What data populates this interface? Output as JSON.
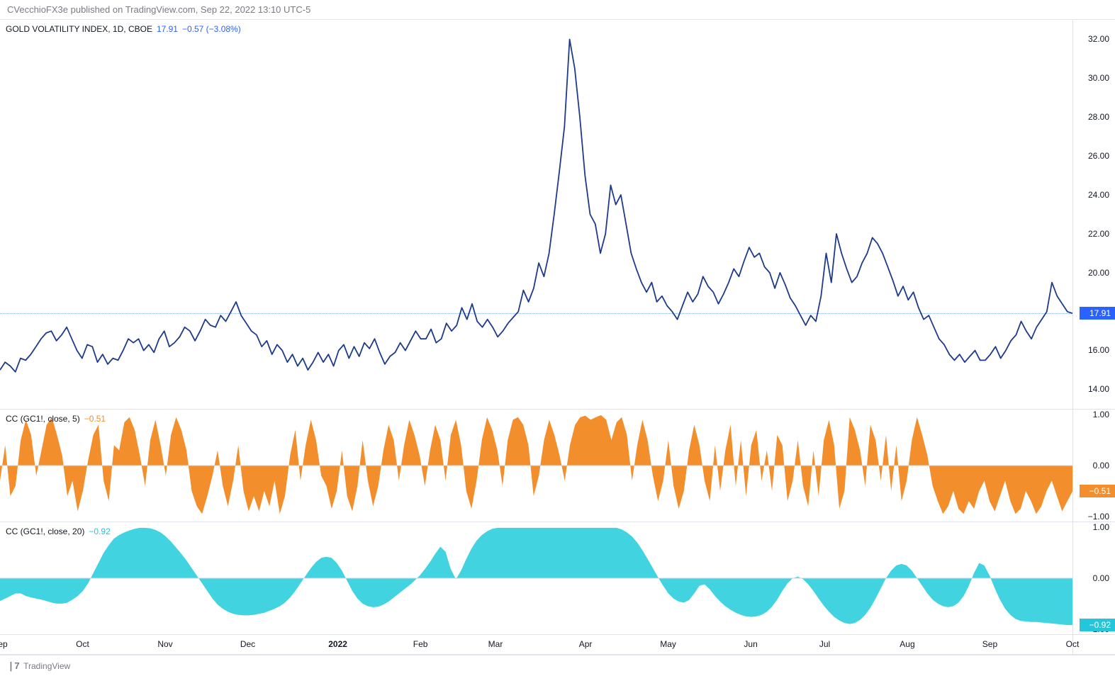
{
  "header": {
    "text": "CVecchioFX3e published on TradingView.com, Sep 22, 2022 13:10 UTC-5"
  },
  "footer": {
    "logo_prefix": "❘7",
    "logo_text": "TradingView"
  },
  "x_axis": {
    "labels": [
      "Sep",
      "Oct",
      "Nov",
      "Dec",
      "2022",
      "Feb",
      "Mar",
      "Apr",
      "May",
      "Jun",
      "Jul",
      "Aug",
      "Sep",
      "Oct"
    ],
    "positions": [
      0.0,
      0.077,
      0.154,
      0.231,
      0.315,
      0.392,
      0.462,
      0.546,
      0.623,
      0.7,
      0.769,
      0.846,
      0.923,
      1.0
    ],
    "bold_index": 4
  },
  "main": {
    "label_symbol": "GOLD VOLATILITY INDEX, 1D, CBOE",
    "label_value": "17.91",
    "label_change": "−0.57 (−3.08%)",
    "label_color": "#131722",
    "value_color": "#2962ff",
    "line_color": "#1e3a8a",
    "line_width": 1.8,
    "current_price": 17.91,
    "current_price_color": "#2962ff",
    "ylim": [
      13.0,
      33.0
    ],
    "yticks": [
      14,
      16,
      18,
      20,
      22,
      24,
      26,
      28,
      30,
      32
    ],
    "ytick_labels": [
      "14.00",
      "16.00",
      "18.00",
      "20.00",
      "22.00",
      "24.00",
      "26.00",
      "28.00",
      "30.00",
      "32.00"
    ],
    "dotted_line_y": 17.91,
    "background": "#ffffff",
    "series": [
      15.0,
      15.4,
      15.2,
      14.9,
      15.6,
      15.5,
      15.8,
      16.2,
      16.6,
      16.9,
      17.0,
      16.5,
      16.8,
      17.2,
      16.6,
      16.0,
      15.6,
      16.3,
      16.2,
      15.4,
      15.8,
      15.3,
      15.6,
      15.5,
      16.0,
      16.6,
      16.4,
      16.6,
      16.0,
      16.3,
      15.9,
      16.6,
      17.0,
      16.2,
      16.4,
      16.7,
      17.2,
      17.0,
      16.5,
      17.0,
      17.6,
      17.3,
      17.2,
      17.8,
      17.5,
      18.0,
      18.5,
      17.8,
      17.4,
      17.0,
      16.8,
      16.2,
      16.5,
      15.8,
      16.3,
      16.0,
      15.4,
      15.8,
      15.2,
      15.6,
      15.0,
      15.4,
      15.9,
      15.4,
      15.8,
      15.2,
      16.0,
      16.3,
      15.6,
      16.2,
      15.7,
      16.4,
      16.1,
      16.6,
      15.9,
      15.3,
      15.7,
      15.9,
      16.4,
      16.0,
      16.5,
      17.0,
      16.6,
      16.6,
      17.1,
      16.4,
      16.6,
      17.4,
      17.0,
      17.3,
      18.2,
      17.6,
      18.4,
      17.5,
      17.2,
      17.6,
      17.2,
      16.7,
      17.0,
      17.4,
      17.7,
      18.0,
      19.1,
      18.5,
      19.2,
      20.5,
      19.8,
      21.0,
      23.0,
      25.2,
      27.5,
      32.0,
      30.5,
      28.0,
      25.0,
      23.0,
      22.5,
      21.0,
      22.0,
      24.5,
      23.5,
      24.0,
      22.5,
      21.0,
      20.2,
      19.5,
      19.0,
      19.5,
      18.5,
      18.8,
      18.3,
      18.0,
      17.6,
      18.3,
      19.0,
      18.5,
      18.9,
      19.8,
      19.3,
      19.0,
      18.4,
      18.9,
      19.5,
      20.2,
      19.8,
      20.6,
      21.3,
      20.8,
      21.0,
      20.3,
      20.0,
      19.2,
      20.0,
      19.4,
      18.7,
      18.3,
      17.8,
      17.3,
      17.8,
      17.5,
      18.8,
      21.0,
      19.5,
      22.0,
      21.0,
      20.2,
      19.5,
      19.8,
      20.5,
      21.0,
      21.8,
      21.5,
      21.0,
      20.3,
      19.6,
      18.8,
      19.3,
      18.6,
      19.0,
      18.2,
      17.6,
      17.8,
      17.2,
      16.6,
      16.3,
      15.8,
      15.5,
      15.8,
      15.4,
      15.7,
      16.0,
      15.5,
      15.5,
      15.8,
      16.2,
      15.6,
      16.0,
      16.5,
      16.8,
      17.5,
      17.0,
      16.6,
      17.2,
      17.6,
      18.0,
      19.5,
      18.8,
      18.4,
      18.0,
      17.91
    ]
  },
  "cc5": {
    "label": "CC (GC1!, close, 5)",
    "value": "−0.51",
    "value_color": "#f28e2b",
    "fill_color": "#f28e2b",
    "current": -0.51,
    "current_color": "#f28e2b",
    "ylim": [
      -1.1,
      1.1
    ],
    "yticks": [
      -1,
      0,
      1
    ],
    "ytick_labels": [
      "−1.00",
      "0.00",
      "1.00"
    ],
    "series": [
      -0.3,
      0.4,
      -0.6,
      -0.4,
      0.5,
      0.9,
      0.6,
      -0.2,
      0.3,
      0.8,
      0.95,
      0.6,
      0.2,
      -0.6,
      -0.3,
      -0.9,
      -0.5,
      0.1,
      0.6,
      0.8,
      -0.3,
      -0.7,
      0.4,
      0.3,
      0.85,
      0.95,
      0.7,
      0.2,
      -0.4,
      0.5,
      0.9,
      0.4,
      -0.2,
      0.6,
      0.95,
      0.7,
      0.3,
      -0.5,
      -0.8,
      -0.95,
      -0.6,
      -0.2,
      0.3,
      -0.4,
      -0.8,
      -0.3,
      0.4,
      -0.5,
      -0.9,
      -0.6,
      -0.9,
      -0.5,
      -0.8,
      -0.3,
      -0.95,
      -0.6,
      0.2,
      0.7,
      -0.3,
      0.4,
      0.9,
      0.5,
      -0.2,
      -0.4,
      -0.85,
      -0.5,
      0.3,
      -0.6,
      -0.9,
      -0.4,
      0.5,
      -0.3,
      -0.8,
      -0.4,
      0.3,
      0.8,
      0.5,
      -0.3,
      0.4,
      0.9,
      0.6,
      0.2,
      -0.4,
      0.3,
      0.8,
      0.5,
      -0.3,
      0.6,
      0.9,
      0.4,
      -0.5,
      -0.85,
      -0.3,
      0.5,
      0.95,
      0.7,
      0.3,
      -0.4,
      0.5,
      0.9,
      0.95,
      0.8,
      0.4,
      -0.6,
      -0.2,
      0.5,
      0.9,
      0.6,
      0.2,
      -0.3,
      0.4,
      0.8,
      0.95,
      0.98,
      0.9,
      0.95,
      0.99,
      0.9,
      0.5,
      0.85,
      0.95,
      0.6,
      -0.3,
      0.4,
      0.9,
      0.5,
      -0.2,
      -0.7,
      -0.3,
      0.5,
      -0.4,
      -0.85,
      -0.5,
      0.3,
      0.8,
      0.4,
      -0.3,
      -0.7,
      0.4,
      -0.5,
      0.3,
      0.8,
      -0.4,
      0.5,
      -0.6,
      0.4,
      0.7,
      -0.3,
      0.3,
      -0.5,
      0.6,
      0.4,
      -0.7,
      -0.3,
      0.5,
      -0.4,
      -0.8,
      0.3,
      -0.6,
      0.5,
      0.9,
      0.4,
      -0.85,
      -0.5,
      0.95,
      0.7,
      0.3,
      -0.4,
      0.8,
      0.5,
      -0.3,
      0.6,
      -0.5,
      0.4,
      -0.7,
      -0.3,
      0.5,
      0.95,
      0.6,
      0.2,
      -0.4,
      -0.7,
      -0.95,
      -0.8,
      -0.5,
      -0.85,
      -0.95,
      -0.7,
      -0.85,
      -0.5,
      -0.3,
      -0.7,
      -0.9,
      -0.6,
      -0.3,
      -0.7,
      -0.95,
      -0.85,
      -0.5,
      -0.7,
      -0.95,
      -0.8,
      -0.5,
      -0.3,
      -0.6,
      -0.9,
      -0.7,
      -0.51
    ]
  },
  "cc20": {
    "label": "CC (GC1!, close, 20)",
    "value": "−0.92",
    "value_color": "#26c6da",
    "fill_color": "#41d3e0",
    "current": -0.92,
    "current_color": "#26c6da",
    "ylim": [
      -1.1,
      1.1
    ],
    "yticks": [
      -1,
      0,
      1
    ],
    "ytick_labels": [
      "−1.00",
      "0.00",
      "1.00"
    ],
    "series": [
      -0.45,
      -0.4,
      -0.35,
      -0.3,
      -0.3,
      -0.35,
      -0.38,
      -0.4,
      -0.42,
      -0.45,
      -0.48,
      -0.5,
      -0.5,
      -0.48,
      -0.42,
      -0.35,
      -0.25,
      -0.1,
      0.1,
      0.3,
      0.5,
      0.65,
      0.78,
      0.85,
      0.9,
      0.94,
      0.97,
      0.99,
      0.99,
      0.98,
      0.95,
      0.9,
      0.82,
      0.72,
      0.6,
      0.48,
      0.35,
      0.2,
      0.05,
      -0.1,
      -0.25,
      -0.4,
      -0.52,
      -0.6,
      -0.66,
      -0.7,
      -0.72,
      -0.73,
      -0.73,
      -0.72,
      -0.7,
      -0.68,
      -0.64,
      -0.6,
      -0.55,
      -0.48,
      -0.38,
      -0.25,
      -0.1,
      0.05,
      0.2,
      0.32,
      0.4,
      0.42,
      0.4,
      0.3,
      0.15,
      -0.05,
      -0.25,
      -0.4,
      -0.5,
      -0.55,
      -0.57,
      -0.56,
      -0.52,
      -0.46,
      -0.38,
      -0.3,
      -0.22,
      -0.14,
      -0.05,
      0.05,
      0.18,
      0.32,
      0.48,
      0.62,
      0.52,
      0.18,
      -0.02,
      0.15,
      0.38,
      0.58,
      0.74,
      0.85,
      0.92,
      0.97,
      0.99,
      0.99,
      0.99,
      0.99,
      0.99,
      0.99,
      0.99,
      0.99,
      0.99,
      0.99,
      0.99,
      0.99,
      0.99,
      0.99,
      0.99,
      0.99,
      0.99,
      0.99,
      0.99,
      0.99,
      0.99,
      0.99,
      0.99,
      0.99,
      0.96,
      0.9,
      0.82,
      0.7,
      0.55,
      0.38,
      0.2,
      0.02,
      -0.15,
      -0.3,
      -0.4,
      -0.46,
      -0.48,
      -0.43,
      -0.3,
      -0.15,
      -0.12,
      -0.22,
      -0.35,
      -0.46,
      -0.55,
      -0.62,
      -0.68,
      -0.72,
      -0.75,
      -0.76,
      -0.75,
      -0.72,
      -0.66,
      -0.56,
      -0.42,
      -0.25,
      -0.1,
      0,
      0.03,
      -0.02,
      -0.12,
      -0.25,
      -0.4,
      -0.54,
      -0.66,
      -0.76,
      -0.83,
      -0.88,
      -0.9,
      -0.88,
      -0.82,
      -0.72,
      -0.58,
      -0.4,
      -0.2,
      0,
      0.15,
      0.25,
      0.28,
      0.25,
      0.15,
      0,
      -0.15,
      -0.3,
      -0.42,
      -0.5,
      -0.55,
      -0.57,
      -0.55,
      -0.48,
      -0.35,
      -0.15,
      0.1,
      0.3,
      0.25,
      0.05,
      -0.2,
      -0.42,
      -0.6,
      -0.72,
      -0.8,
      -0.84,
      -0.85,
      -0.86,
      -0.86,
      -0.87,
      -0.88,
      -0.89,
      -0.9,
      -0.91,
      -0.92,
      -0.92
    ]
  }
}
